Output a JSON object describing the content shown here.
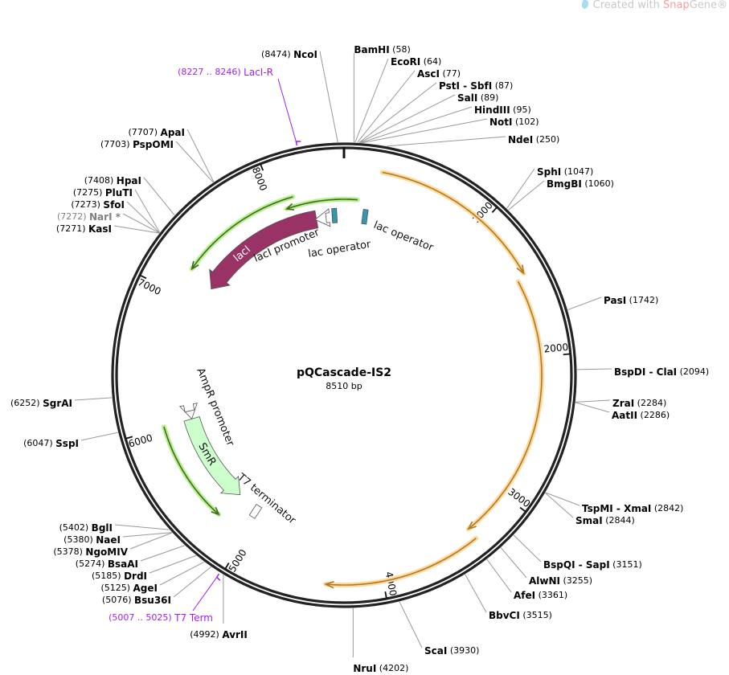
{
  "watermark": {
    "prefix": "Created with ",
    "brand_a": "Snap",
    "brand_b": "Gene",
    "reg": "®"
  },
  "plasmid": {
    "name": "pQCascade-IS2",
    "length_label": "8510 bp",
    "length": 8510
  },
  "ticks": [
    "1000",
    "2000",
    "3000",
    "4000",
    "5000",
    "6000",
    "7000",
    "8000"
  ],
  "enzymes": [
    {
      "name": "BamHI",
      "pos": "58",
      "bp": 58
    },
    {
      "name": "EcoRI",
      "pos": "64",
      "bp": 64
    },
    {
      "name": "AscI",
      "pos": "77",
      "bp": 77
    },
    {
      "name": "PstI",
      "name2": "SbfI",
      "pos": "87",
      "bp": 87
    },
    {
      "name": "SalI",
      "pos": "89",
      "bp": 89
    },
    {
      "name": "HindIII",
      "pos": "95",
      "bp": 95
    },
    {
      "name": "NotI",
      "pos": "102",
      "bp": 102
    },
    {
      "name": "NdeI",
      "pos": "250",
      "bp": 250
    },
    {
      "name": "SphI",
      "pos": "1047",
      "bp": 1047
    },
    {
      "name": "BmgBI",
      "pos": "1060",
      "bp": 1060
    },
    {
      "name": "PasI",
      "pos": "1742",
      "bp": 1742
    },
    {
      "name": "BspDI",
      "name2": "ClaI",
      "pos": "2094",
      "bp": 2094
    },
    {
      "name": "ZraI",
      "pos": "2284",
      "bp": 2284
    },
    {
      "name": "AatII",
      "pos": "2286",
      "bp": 2286
    },
    {
      "name": "TspMI",
      "name2": "XmaI",
      "pos": "2842",
      "bp": 2842
    },
    {
      "name": "SmaI",
      "pos": "2844",
      "bp": 2844
    },
    {
      "name": "BspQI",
      "name2": "SapI",
      "pos": "3151",
      "bp": 3151
    },
    {
      "name": "AlwNI",
      "pos": "3255",
      "bp": 3255
    },
    {
      "name": "AfeI",
      "pos": "3361",
      "bp": 3361
    },
    {
      "name": "BbvCI",
      "pos": "3515",
      "bp": 3515
    },
    {
      "name": "ScaI",
      "pos": "3930",
      "bp": 3930
    },
    {
      "name": "NruI",
      "pos": "4202",
      "bp": 4202
    },
    {
      "name": "AvrII",
      "pos": "4992",
      "bp": 4992
    },
    {
      "name": "Bsu36I",
      "pos": "5076",
      "bp": 5076
    },
    {
      "name": "AgeI",
      "pos": "5125",
      "bp": 5125
    },
    {
      "name": "DrdI",
      "pos": "5185",
      "bp": 5185
    },
    {
      "name": "BsaAI",
      "pos": "5274",
      "bp": 5274
    },
    {
      "name": "NgoMIV",
      "pos": "5378",
      "bp": 5378
    },
    {
      "name": "NaeI",
      "pos": "5380",
      "bp": 5380
    },
    {
      "name": "BglI",
      "pos": "5402",
      "bp": 5402
    },
    {
      "name": "SspI",
      "pos": "6047",
      "bp": 6047
    },
    {
      "name": "SgrAI",
      "pos": "6252",
      "bp": 6252
    },
    {
      "name": "KasI",
      "pos": "7271",
      "bp": 7271
    },
    {
      "name": "NarI",
      "suffix": "*",
      "pos": "7272",
      "bp": 7272,
      "grey": true
    },
    {
      "name": "SfoI",
      "pos": "7273",
      "bp": 7273
    },
    {
      "name": "PluTI",
      "pos": "7275",
      "bp": 7275
    },
    {
      "name": "HpaI",
      "pos": "7408",
      "bp": 7408
    },
    {
      "name": "PspOMI",
      "pos": "7703",
      "bp": 7703
    },
    {
      "name": "ApaI",
      "pos": "7707",
      "bp": 7707
    },
    {
      "name": "NcoI",
      "pos": "8474",
      "bp": 8474
    }
  ],
  "primers": [
    {
      "name": "LacI-R",
      "range": "8227 .. 8246",
      "bp": 8236
    },
    {
      "name": "T7 Term",
      "range": "5007 .. 5025",
      "bp": 5016
    }
  ],
  "features": {
    "lacI": "lacI",
    "lacI_promoter": "lacI promoter",
    "lac_operator_1": "lac operator",
    "lac_operator_2": "lac operator",
    "SmR": "SmR",
    "AmpR_promoter": "AmpR promoter",
    "T7_terminator": "T7 terminator"
  },
  "colors": {
    "lacI": "#993366",
    "SmR": "#ccffcc",
    "orf_glow_orange": "#fdd9a0",
    "orf_line_orange": "#b07a20",
    "orf_glow_green": "#b8f090",
    "orf_line_green": "#3f6a1f",
    "operator": "#3399aa",
    "primer": "#a020f0"
  }
}
